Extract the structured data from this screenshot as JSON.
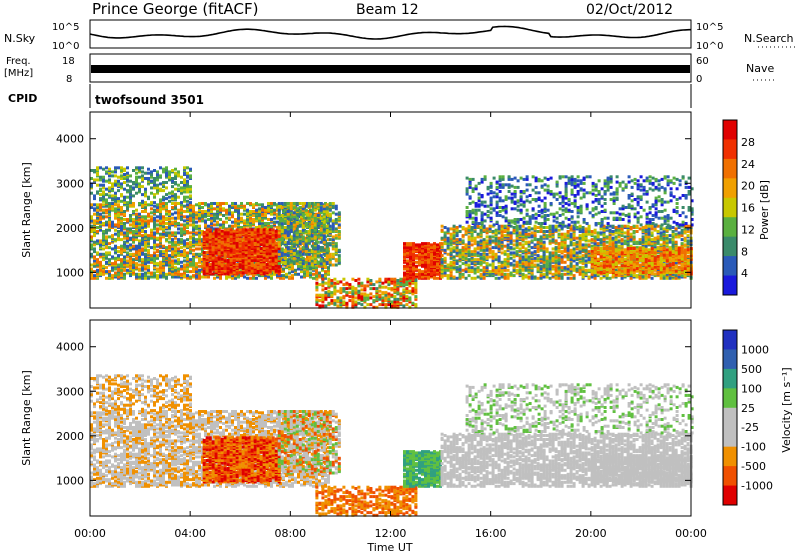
{
  "header": {
    "station": "Prince George (fitACF)",
    "beam": "Beam 12",
    "date": "02/Oct/2012"
  },
  "rows": {
    "nsky_label": "N.Sky",
    "nsky_top": "10^5",
    "nsky_bottom": "10^0",
    "nsearch_label": "N.Search",
    "nsearch_top": "10^5",
    "nsearch_bottom": "10^0",
    "freq_label": "Freq.",
    "freq_unit": "[MHz]",
    "freq_top": "18",
    "freq_bottom": "8",
    "nave_label": "Nave",
    "nave_top": "60",
    "nave_bottom": "0",
    "cpid_label": "CPID",
    "cpid_value": "twofsound 3501"
  },
  "colors": {
    "power": [
      "#1a1adc",
      "#2a5ab8",
      "#3a8a6a",
      "#5ab040",
      "#c8c800",
      "#f0a000",
      "#f07000",
      "#f03000",
      "#e00000"
    ],
    "velocity": [
      "#e00000",
      "#f05000",
      "#f09000",
      "#c0c0c0",
      "#c0c0c0",
      "#60c040",
      "#30a080",
      "#3060b0",
      "#2030c0"
    ]
  },
  "chart_data": [
    {
      "type": "heatmap",
      "panel": "power",
      "ylabel": "Slant Range [km]",
      "yticks": [
        "1000",
        "2000",
        "3000",
        "4000"
      ],
      "ylim": [
        200,
        4600
      ],
      "xlim_hours": [
        0,
        24
      ],
      "colorbar_label": "Power [dB]",
      "colorbar_ticks": [
        "4",
        "8",
        "12",
        "16",
        "20",
        "24",
        "28"
      ],
      "colorbar_range": [
        0,
        32
      ]
    },
    {
      "type": "heatmap",
      "panel": "velocity",
      "ylabel": "Slant Range [km]",
      "yticks": [
        "1000",
        "2000",
        "3000",
        "4000"
      ],
      "ylim": [
        200,
        4600
      ],
      "xlim_hours": [
        0,
        24
      ],
      "colorbar_label": "Velocity [m s⁻¹]",
      "colorbar_ticks": [
        "-1000",
        "-500",
        "-100",
        "-25",
        "25",
        "100",
        "500",
        "1000"
      ]
    }
  ],
  "xaxis": {
    "ticks": [
      "00:00",
      "04:00",
      "08:00",
      "12:00",
      "16:00",
      "20:00",
      "00:00"
    ],
    "label": "Time UT"
  }
}
